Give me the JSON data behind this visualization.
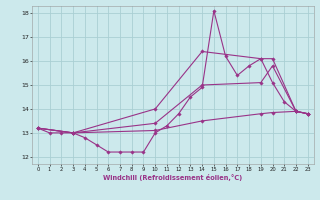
{
  "xlabel": "Windchill (Refroidissement éolien,°C)",
  "xlim": [
    -0.5,
    23.5
  ],
  "ylim": [
    11.7,
    18.3
  ],
  "yticks": [
    12,
    13,
    14,
    15,
    16,
    17,
    18
  ],
  "xticks": [
    0,
    1,
    2,
    3,
    4,
    5,
    6,
    7,
    8,
    9,
    10,
    11,
    12,
    13,
    14,
    15,
    16,
    17,
    18,
    19,
    20,
    21,
    22,
    23
  ],
  "bg_color": "#cce9ec",
  "grid_color": "#aacfd4",
  "line_color": "#993388",
  "series": [
    {
      "x": [
        0,
        1,
        2,
        3,
        4,
        5,
        6,
        7,
        8,
        9,
        10,
        11,
        12,
        13,
        14,
        15,
        16,
        17,
        18,
        19,
        20,
        21,
        22,
        23
      ],
      "y": [
        13.2,
        13.0,
        13.0,
        13.0,
        12.8,
        12.5,
        12.2,
        12.2,
        12.2,
        12.2,
        13.0,
        13.3,
        13.8,
        14.5,
        14.9,
        18.1,
        16.2,
        15.4,
        15.8,
        16.1,
        15.1,
        14.3,
        13.9,
        13.8
      ],
      "markers": true
    },
    {
      "x": [
        0,
        3,
        10,
        14,
        19,
        20,
        22,
        23
      ],
      "y": [
        13.2,
        13.0,
        14.0,
        16.4,
        16.1,
        16.1,
        13.9,
        13.8
      ],
      "markers": true
    },
    {
      "x": [
        0,
        3,
        10,
        14,
        19,
        20,
        22,
        23
      ],
      "y": [
        13.2,
        13.0,
        13.4,
        15.0,
        15.1,
        15.8,
        13.9,
        13.8
      ],
      "markers": true
    },
    {
      "x": [
        0,
        3,
        10,
        14,
        19,
        20,
        22,
        23
      ],
      "y": [
        13.2,
        13.0,
        13.1,
        13.5,
        13.8,
        13.85,
        13.9,
        13.8
      ],
      "markers": true
    }
  ]
}
